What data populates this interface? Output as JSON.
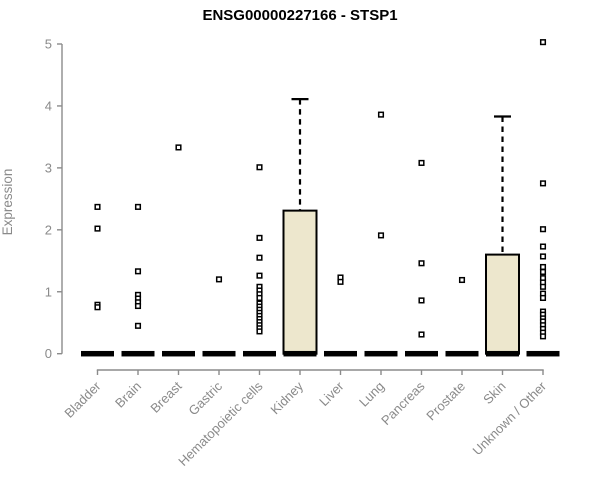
{
  "chart_data": {
    "type": "boxplot",
    "title": "ENSG00000227166 - STSP1",
    "ylabel": "Expression",
    "xlabel": "",
    "ylim": [
      0,
      5
    ],
    "yticks": [
      0,
      1,
      2,
      3,
      4,
      5
    ],
    "grid": false,
    "legend": false,
    "categories": [
      "Bladder",
      "Brain",
      "Breast",
      "Gastric",
      "Hematopoietic cells",
      "Kidney",
      "Liver",
      "Lung",
      "Pancreas",
      "Prostate",
      "Skin",
      "Unknown / Other"
    ],
    "series": [
      {
        "name": "Bladder",
        "q1": 0,
        "median": 0,
        "q3": 0,
        "whisker_low": 0,
        "whisker_high": 0,
        "outliers": [
          2.37,
          2.02,
          0.79,
          0.75
        ]
      },
      {
        "name": "Brain",
        "q1": 0,
        "median": 0,
        "q3": 0,
        "whisker_low": 0,
        "whisker_high": 0,
        "outliers": [
          2.37,
          1.33,
          0.95,
          0.89,
          0.83,
          0.77,
          0.45
        ]
      },
      {
        "name": "Breast",
        "q1": 0,
        "median": 0,
        "q3": 0,
        "whisker_low": 0,
        "whisker_high": 0,
        "outliers": [
          3.33
        ]
      },
      {
        "name": "Gastric",
        "q1": 0,
        "median": 0,
        "q3": 0,
        "whisker_low": 0,
        "whisker_high": 0,
        "outliers": [
          1.2
        ]
      },
      {
        "name": "Hematopoietic cells",
        "q1": 0,
        "median": 0,
        "q3": 0,
        "whisker_low": 0,
        "whisker_high": 0,
        "outliers": [
          3.01,
          1.87,
          1.55,
          1.26,
          1.08,
          1.02,
          0.96,
          0.9,
          0.81,
          0.76,
          0.71,
          0.66,
          0.61,
          0.56,
          0.51,
          0.46,
          0.41,
          0.36
        ]
      },
      {
        "name": "Kidney",
        "q1": 0,
        "median": 0,
        "q3": 2.31,
        "whisker_low": 0,
        "whisker_high": 4.11,
        "outliers": []
      },
      {
        "name": "Liver",
        "q1": 0,
        "median": 0,
        "q3": 0,
        "whisker_low": 0,
        "whisker_high": 0,
        "outliers": [
          1.23,
          1.16
        ]
      },
      {
        "name": "Lung",
        "q1": 0,
        "median": 0,
        "q3": 0,
        "whisker_low": 0,
        "whisker_high": 0,
        "outliers": [
          3.86,
          1.91
        ]
      },
      {
        "name": "Pancreas",
        "q1": 0,
        "median": 0,
        "q3": 0,
        "whisker_low": 0,
        "whisker_high": 0,
        "outliers": [
          3.08,
          1.46,
          0.86,
          0.31
        ]
      },
      {
        "name": "Prostate",
        "q1": 0,
        "median": 0,
        "q3": 0,
        "whisker_low": 0,
        "whisker_high": 0,
        "outliers": [
          1.19
        ]
      },
      {
        "name": "Skin",
        "q1": 0,
        "median": 0,
        "q3": 1.6,
        "whisker_low": 0,
        "whisker_high": 3.83,
        "outliers": []
      },
      {
        "name": "Unknown / Other",
        "q1": 0,
        "median": 0,
        "q3": 0,
        "whisker_low": 0,
        "whisker_high": 0,
        "outliers": [
          5.03,
          2.75,
          2.01,
          1.73,
          1.57,
          1.4,
          1.32,
          1.22,
          1.15,
          1.08,
          0.97,
          0.9,
          0.68,
          0.63,
          0.57,
          0.52,
          0.46,
          0.4,
          0.34,
          0.28
        ]
      }
    ],
    "colors": {
      "box_fill": "#EDE7CD",
      "box_stroke": "#000000",
      "median": "#000000",
      "whisker": "#000000",
      "axis": "#8b8b8b",
      "tick_label": "#8a8a8a",
      "title": "#000000",
      "point_fill": "#ffffff",
      "point_stroke": "#000000",
      "background": "#ffffff"
    }
  }
}
